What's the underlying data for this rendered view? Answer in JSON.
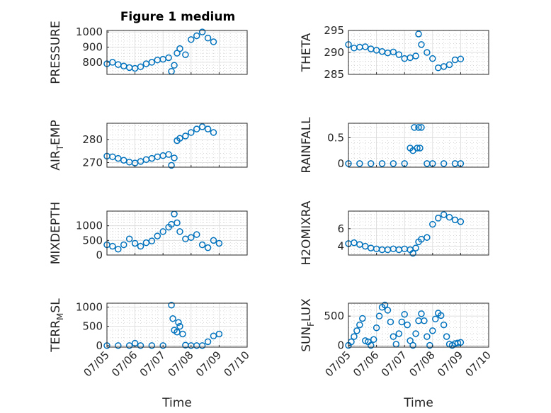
{
  "figure": {
    "title": "Figure 1 medium",
    "marker_color": "#0072BD",
    "x_tick_labels": [
      "07/05",
      "07/06",
      "07/07",
      "07/08",
      "07/09",
      "07/10"
    ],
    "x_axis_label": "Time"
  },
  "chart_data": [
    {
      "type": "scatter",
      "ylabel": "PRESSURE",
      "ylim": [
        720,
        1010
      ],
      "yticks": [
        800,
        900,
        1000
      ],
      "xlim": [
        5,
        10
      ],
      "grid": true,
      "x": [
        5.0,
        5.2,
        5.4,
        5.6,
        5.8,
        6.0,
        6.2,
        6.4,
        6.6,
        6.8,
        7.0,
        7.2,
        7.3,
        7.4,
        7.5,
        7.6,
        7.8,
        8.0,
        8.2,
        8.4,
        8.6,
        8.8
      ],
      "y": [
        790,
        800,
        785,
        775,
        765,
        760,
        770,
        790,
        800,
        815,
        820,
        830,
        740,
        780,
        860,
        890,
        850,
        950,
        975,
        1000,
        960,
        935
      ]
    },
    {
      "type": "scatter",
      "ylabel": "THETA",
      "ylim": [
        285,
        295
      ],
      "yticks": [
        285,
        290,
        295
      ],
      "xlim": [
        5,
        10
      ],
      "grid": true,
      "x": [
        5.0,
        5.2,
        5.4,
        5.6,
        5.8,
        6.0,
        6.2,
        6.4,
        6.6,
        6.8,
        7.0,
        7.2,
        7.4,
        7.5,
        7.6,
        7.8,
        8.0,
        8.2,
        8.4,
        8.6,
        8.8,
        9.0
      ],
      "y": [
        291.8,
        291.0,
        291.2,
        291.3,
        290.8,
        290.5,
        290.2,
        289.9,
        290.1,
        289.5,
        288.6,
        288.8,
        289.2,
        294.2,
        291.8,
        290.0,
        288.6,
        286.5,
        286.8,
        287.2,
        288.3,
        288.5
      ]
    },
    {
      "type": "scatter",
      "ylabel": "AIR",
      "ylabel_sub": "T",
      "ylabel_rest": "EMP",
      "ylim": [
        268,
        287
      ],
      "yticks": [
        270,
        280
      ],
      "xlim": [
        5,
        10
      ],
      "grid": true,
      "x": [
        5.0,
        5.2,
        5.4,
        5.6,
        5.8,
        6.0,
        6.2,
        6.4,
        6.6,
        6.8,
        7.0,
        7.2,
        7.3,
        7.4,
        7.5,
        7.6,
        7.8,
        8.0,
        8.2,
        8.4,
        8.6,
        8.8
      ],
      "y": [
        272.8,
        272.5,
        271.8,
        271.0,
        270.2,
        269.8,
        270.5,
        271.3,
        271.8,
        272.5,
        273.0,
        273.5,
        268.8,
        272.0,
        279.5,
        280.5,
        281.5,
        283.0,
        284.5,
        285.5,
        284.5,
        283.0
      ]
    },
    {
      "type": "scatter",
      "ylabel": "RAINFALL",
      "ylim": [
        -0.07,
        0.78
      ],
      "yticks": [
        0,
        0.5
      ],
      "xlim": [
        5,
        10
      ],
      "grid": true,
      "x": [
        5.0,
        5.4,
        5.8,
        6.2,
        6.6,
        7.0,
        7.2,
        7.3,
        7.35,
        7.45,
        7.5,
        7.55,
        7.6,
        7.8,
        8.0,
        8.4,
        8.8,
        9.0
      ],
      "y": [
        0,
        0,
        0,
        0,
        0,
        0,
        0.3,
        0.25,
        0.7,
        0.3,
        0.7,
        0.3,
        0.7,
        0,
        0,
        0,
        0,
        0
      ]
    },
    {
      "type": "scatter",
      "ylabel": "MIXDEPTH",
      "ylim": [
        0,
        1500
      ],
      "yticks": [
        0,
        500,
        1000
      ],
      "xlim": [
        5,
        10
      ],
      "grid": true,
      "x": [
        5.0,
        5.2,
        5.4,
        5.6,
        5.8,
        6.0,
        6.2,
        6.4,
        6.6,
        6.8,
        7.0,
        7.2,
        7.3,
        7.4,
        7.5,
        7.6,
        7.8,
        8.0,
        8.2,
        8.4,
        8.6,
        8.8,
        9.0
      ],
      "y": [
        350,
        300,
        200,
        350,
        550,
        400,
        300,
        420,
        480,
        650,
        800,
        950,
        1050,
        1400,
        1100,
        800,
        550,
        600,
        700,
        350,
        250,
        500,
        400
      ]
    },
    {
      "type": "scatter",
      "ylabel": "H2OMIXRA",
      "ylim": [
        3,
        8
      ],
      "yticks": [
        4,
        6
      ],
      "xlim": [
        5,
        10
      ],
      "grid": true,
      "x": [
        5.0,
        5.2,
        5.4,
        5.6,
        5.8,
        6.0,
        6.2,
        6.4,
        6.6,
        6.8,
        7.0,
        7.2,
        7.3,
        7.4,
        7.5,
        7.6,
        7.8,
        8.0,
        8.2,
        8.4,
        8.6,
        8.8,
        9.0
      ],
      "y": [
        4.3,
        4.4,
        4.2,
        4.0,
        3.8,
        3.7,
        3.6,
        3.6,
        3.7,
        3.6,
        3.7,
        3.6,
        3.2,
        3.8,
        4.5,
        4.8,
        5.0,
        6.5,
        7.2,
        7.6,
        7.3,
        7.0,
        6.8
      ]
    },
    {
      "type": "scatter",
      "ylabel": "TERR",
      "ylabel_sub": "M",
      "ylabel_rest": "SL",
      "ylim": [
        -40,
        1100
      ],
      "yticks": [
        0,
        500,
        1000
      ],
      "xlim": [
        5,
        10
      ],
      "grid": true,
      "x": [
        5.0,
        5.4,
        5.8,
        6.0,
        6.2,
        6.6,
        7.0,
        7.3,
        7.35,
        7.4,
        7.5,
        7.55,
        7.6,
        7.7,
        7.8,
        8.0,
        8.2,
        8.4,
        8.6,
        8.8,
        9.0
      ],
      "y": [
        0,
        0,
        0,
        60,
        0,
        0,
        0,
        1050,
        700,
        400,
        350,
        600,
        500,
        300,
        10,
        0,
        0,
        0,
        100,
        250,
        300
      ]
    },
    {
      "type": "scatter",
      "ylabel": "SUN",
      "ylabel_sub": "F",
      "ylabel_rest": "LUX",
      "ylim": [
        -30,
        720
      ],
      "yticks": [
        0,
        500
      ],
      "xlim": [
        5,
        10
      ],
      "grid": true,
      "x": [
        5.0,
        5.1,
        5.2,
        5.3,
        5.4,
        5.5,
        5.6,
        5.7,
        5.8,
        5.9,
        6.0,
        6.1,
        6.2,
        6.3,
        6.4,
        6.5,
        6.6,
        6.7,
        6.8,
        6.9,
        7.0,
        7.1,
        7.2,
        7.3,
        7.4,
        7.5,
        7.6,
        7.7,
        7.8,
        7.9,
        8.0,
        8.1,
        8.2,
        8.3,
        8.4,
        8.5,
        8.6,
        8.7,
        8.8,
        8.9,
        9.0
      ],
      "y": [
        0,
        60,
        150,
        250,
        350,
        460,
        80,
        60,
        0,
        100,
        300,
        500,
        650,
        690,
        600,
        400,
        150,
        20,
        200,
        400,
        530,
        350,
        80,
        0,
        200,
        420,
        540,
        420,
        150,
        0,
        250,
        450,
        550,
        510,
        350,
        150,
        20,
        0,
        30,
        40,
        50
      ]
    }
  ]
}
